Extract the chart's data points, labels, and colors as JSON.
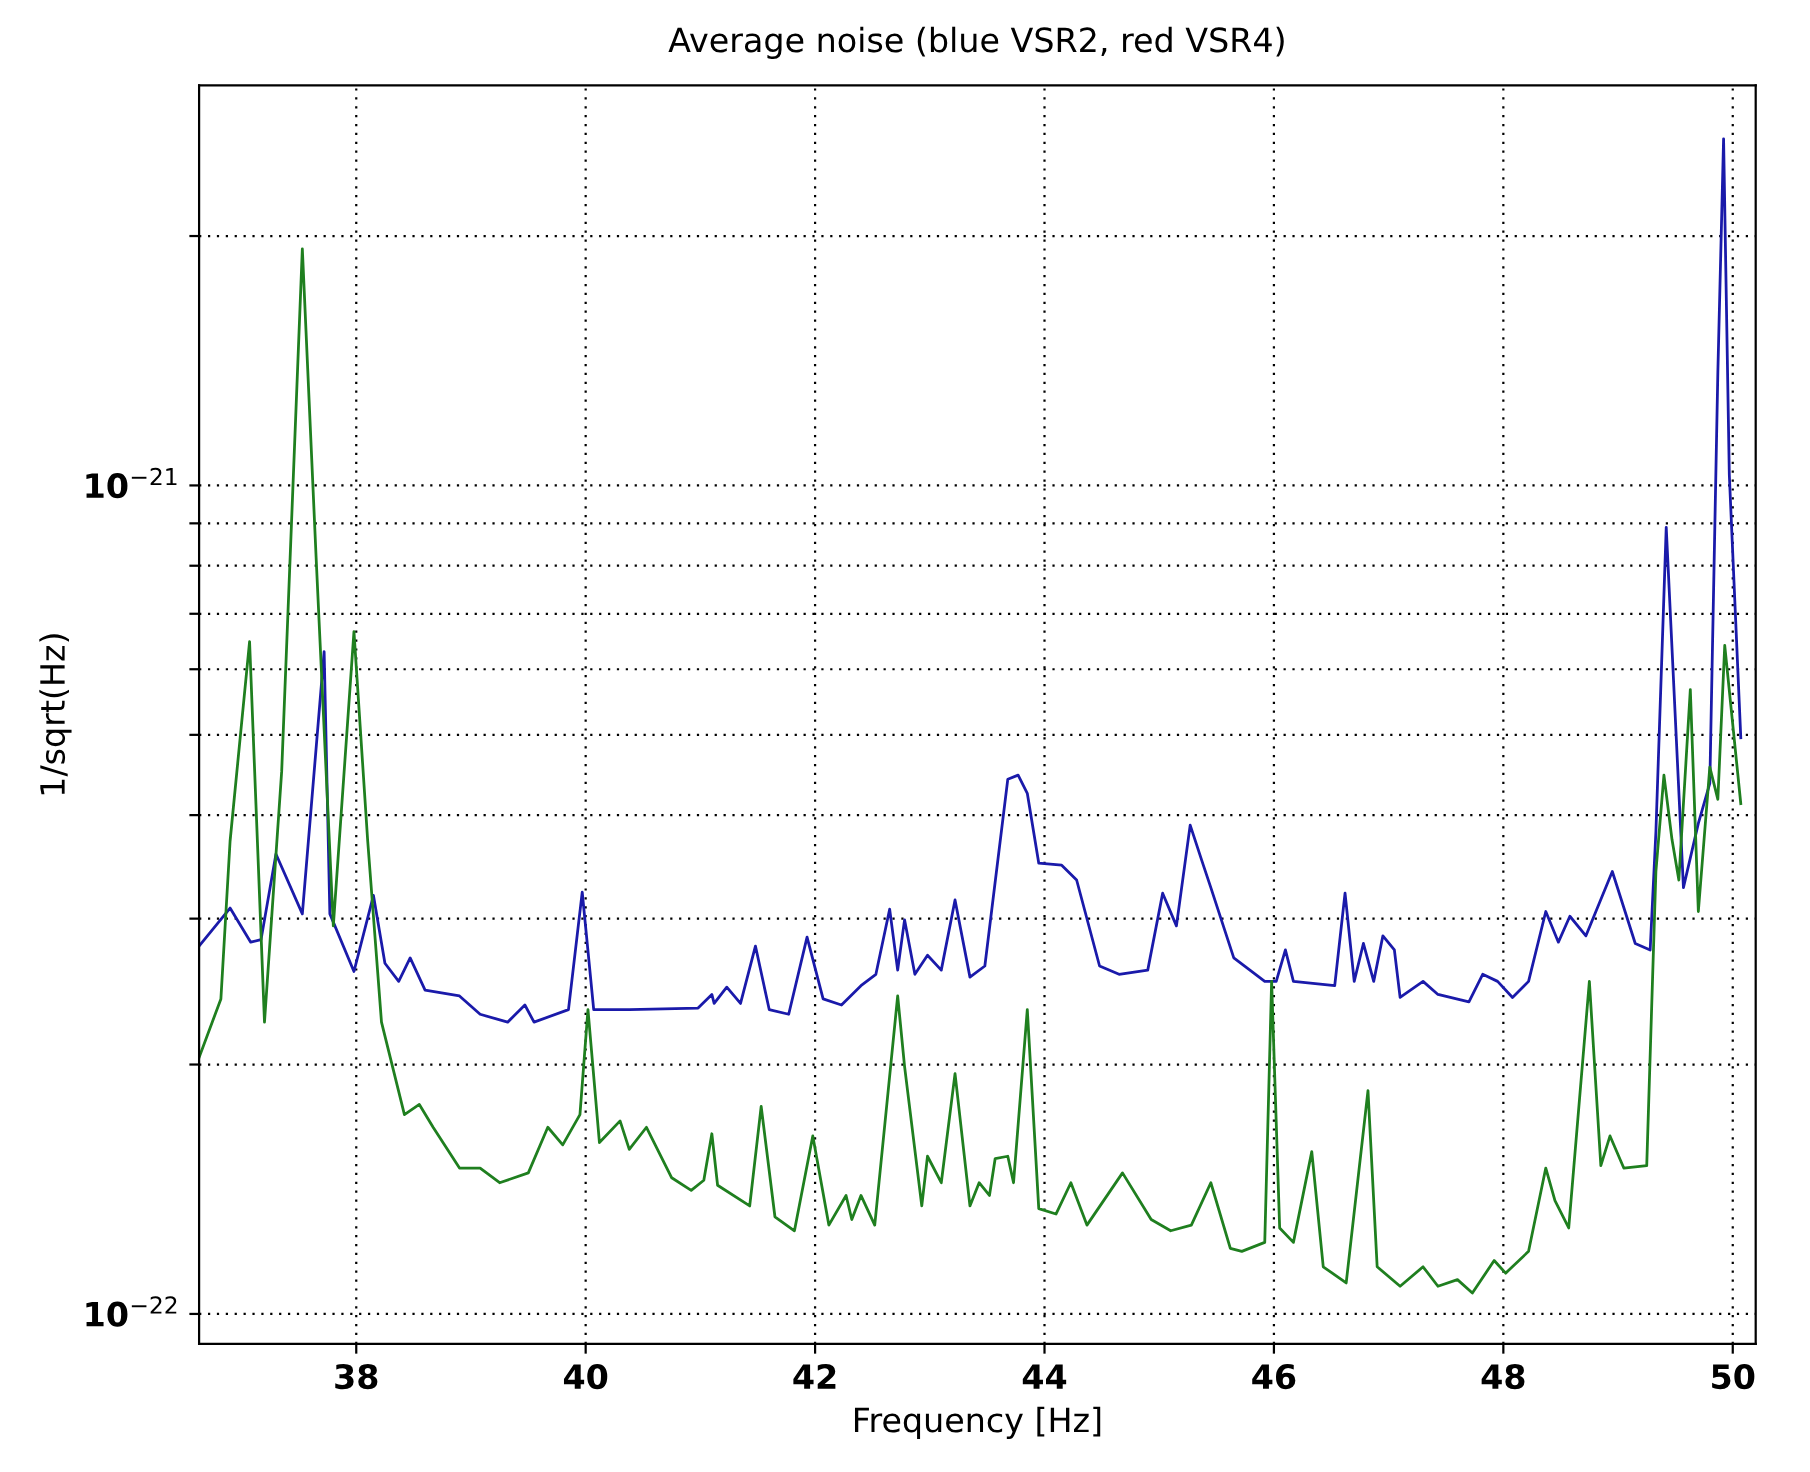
{
  "chart_data": {
    "type": "line",
    "title": "Average noise (blue VSR2, red VSR4)",
    "xlabel": "Frequency [Hz]",
    "ylabel": "1/sqrt(Hz)",
    "log": "y",
    "grid": true,
    "line_style": "solid",
    "marker": "none",
    "xlim": [
      36.63,
      50.2
    ],
    "xticks": [
      38,
      40,
      42,
      44,
      46,
      48,
      50
    ],
    "ylim": [
      9.2e-23,
      3.04e-21
    ],
    "yticks": [
      {
        "value": 1e-22,
        "label": "10$^{−22}$"
      },
      {
        "value": 2e-22,
        "label": null
      },
      {
        "value": 3e-22,
        "label": null
      },
      {
        "value": 4e-22,
        "label": null
      },
      {
        "value": 5e-22,
        "label": null
      },
      {
        "value": 6e-22,
        "label": null
      },
      {
        "value": 7e-22,
        "label": null
      },
      {
        "value": 8e-22,
        "label": null
      },
      {
        "value": 9e-22,
        "label": null
      },
      {
        "value": 1e-21,
        "label": "10$^{−21}$"
      },
      {
        "value": 2e-21,
        "label": null
      }
    ],
    "series": [
      {
        "color": "#1a1aaa",
        "x": [
          36.63,
          36.9,
          37.08,
          37.17,
          37.3,
          37.53,
          37.72,
          37.77,
          37.98,
          38.15,
          38.25,
          38.37,
          38.47,
          38.6,
          38.9,
          39.08,
          39.32,
          39.47,
          39.55,
          39.85,
          39.97,
          40.07,
          40.38,
          40.98,
          41.1,
          41.12,
          41.23,
          41.35,
          41.48,
          41.6,
          41.77,
          41.93,
          42.07,
          42.23,
          42.4,
          42.53,
          42.65,
          42.72,
          42.78,
          42.87,
          42.98,
          43.1,
          43.22,
          43.35,
          43.48,
          43.68,
          43.77,
          43.85,
          43.95,
          44.15,
          44.28,
          44.48,
          44.65,
          44.9,
          45.03,
          45.15,
          45.27,
          45.37,
          45.45,
          45.65,
          45.92,
          46.02,
          46.1,
          46.17,
          46.53,
          46.62,
          46.7,
          46.78,
          46.87,
          46.95,
          47.05,
          47.1,
          47.3,
          47.43,
          47.7,
          47.82,
          47.95,
          48.08,
          48.22,
          48.37,
          48.48,
          48.58,
          48.72,
          48.95,
          49.15,
          49.28,
          49.33,
          49.42,
          49.57,
          49.7,
          49.8,
          49.87,
          49.92,
          49.97,
          50.07
        ],
        "values": [
          2.78e-22,
          3.09e-22,
          2.81e-22,
          2.83e-22,
          3.59e-22,
          3.04e-22,
          6.3e-22,
          3.04e-22,
          2.59e-22,
          3.2e-22,
          2.65e-22,
          2.52e-22,
          2.69e-22,
          2.46e-22,
          2.42e-22,
          2.3e-22,
          2.25e-22,
          2.36e-22,
          2.25e-22,
          2.33e-22,
          3.23e-22,
          2.33e-22,
          2.33e-22,
          2.34e-22,
          2.43e-22,
          2.37e-22,
          2.48e-22,
          2.37e-22,
          2.78e-22,
          2.33e-22,
          2.3e-22,
          2.85e-22,
          2.4e-22,
          2.36e-22,
          2.49e-22,
          2.57e-22,
          3.08e-22,
          2.6e-22,
          2.99e-22,
          2.57e-22,
          2.71e-22,
          2.6e-22,
          3.16e-22,
          2.55e-22,
          2.63e-22,
          4.42e-22,
          4.47e-22,
          4.25e-22,
          3.5e-22,
          3.48e-22,
          3.34e-22,
          2.63e-22,
          2.57e-22,
          2.6e-22,
          3.22e-22,
          2.94e-22,
          3.89e-22,
          3.53e-22,
          3.27e-22,
          2.69e-22,
          2.52e-22,
          2.52e-22,
          2.75e-22,
          2.52e-22,
          2.49e-22,
          3.22e-22,
          2.52e-22,
          2.8e-22,
          2.52e-22,
          2.86e-22,
          2.75e-22,
          2.41e-22,
          2.52e-22,
          2.43e-22,
          2.38e-22,
          2.57e-22,
          2.52e-22,
          2.41e-22,
          2.52e-22,
          3.06e-22,
          2.81e-22,
          3.02e-22,
          2.86e-22,
          3.42e-22,
          2.8e-22,
          2.75e-22,
          3.82e-22,
          8.9e-22,
          3.27e-22,
          3.91e-22,
          4.37e-22,
          1.37e-21,
          2.62e-21,
          1.03e-21,
          4.96e-22
        ]
      },
      {
        "color": "#1f7f1f",
        "x": [
          36.63,
          36.82,
          36.9,
          37.07,
          37.2,
          37.35,
          37.53,
          37.65,
          37.8,
          37.98,
          38.1,
          38.22,
          38.42,
          38.55,
          38.67,
          38.9,
          39.08,
          39.25,
          39.5,
          39.67,
          39.8,
          39.95,
          40.02,
          40.12,
          40.3,
          40.38,
          40.53,
          40.75,
          40.92,
          41.03,
          41.1,
          41.15,
          41.43,
          41.53,
          41.65,
          41.82,
          41.98,
          42.12,
          42.27,
          42.32,
          42.4,
          42.52,
          42.72,
          42.78,
          42.93,
          42.98,
          43.1,
          43.22,
          43.35,
          43.43,
          43.52,
          43.57,
          43.68,
          43.73,
          43.85,
          43.95,
          44.1,
          44.23,
          44.37,
          44.68,
          44.93,
          45.1,
          45.28,
          45.45,
          45.62,
          45.72,
          45.92,
          45.98,
          46.05,
          46.17,
          46.33,
          46.43,
          46.63,
          46.82,
          46.9,
          47.1,
          47.3,
          47.43,
          47.6,
          47.73,
          47.92,
          48.02,
          48.22,
          48.37,
          48.45,
          48.57,
          48.75,
          48.85,
          48.93,
          49.05,
          49.25,
          49.33,
          49.4,
          49.47,
          49.53,
          49.63,
          49.7,
          49.8,
          49.87,
          49.93,
          50.07
        ],
        "values": [
          2.04e-22,
          2.4e-22,
          3.72e-22,
          6.48e-22,
          2.25e-22,
          4.52e-22,
          1.93e-21,
          8.19e-22,
          2.94e-22,
          6.66e-22,
          3.72e-22,
          2.25e-22,
          1.74e-22,
          1.79e-22,
          1.68e-22,
          1.5e-22,
          1.5e-22,
          1.44e-22,
          1.48e-22,
          1.68e-22,
          1.6e-22,
          1.74e-22,
          2.33e-22,
          1.61e-22,
          1.71e-22,
          1.58e-22,
          1.68e-22,
          1.46e-22,
          1.41e-22,
          1.45e-22,
          1.65e-22,
          1.43e-22,
          1.35e-22,
          1.78e-22,
          1.31e-22,
          1.26e-22,
          1.64e-22,
          1.28e-22,
          1.39e-22,
          1.3e-22,
          1.39e-22,
          1.28e-22,
          2.42e-22,
          1.99e-22,
          1.35e-22,
          1.55e-22,
          1.44e-22,
          1.95e-22,
          1.35e-22,
          1.44e-22,
          1.39e-22,
          1.54e-22,
          1.55e-22,
          1.44e-22,
          2.33e-22,
          1.34e-22,
          1.32e-22,
          1.44e-22,
          1.28e-22,
          1.48e-22,
          1.3e-22,
          1.26e-22,
          1.28e-22,
          1.44e-22,
          1.2e-22,
          1.19e-22,
          1.22e-22,
          2.52e-22,
          1.27e-22,
          1.22e-22,
          1.57e-22,
          1.14e-22,
          1.09e-22,
          1.86e-22,
          1.14e-22,
          1.08e-22,
          1.14e-22,
          1.08e-22,
          1.1e-22,
          1.06e-22,
          1.16e-22,
          1.12e-22,
          1.19e-22,
          1.5e-22,
          1.37e-22,
          1.27e-22,
          2.52e-22,
          1.51e-22,
          1.64e-22,
          1.5e-22,
          1.51e-22,
          3.42e-22,
          4.47e-22,
          3.74e-22,
          3.34e-22,
          5.67e-22,
          3.06e-22,
          4.57e-22,
          4.18e-22,
          6.41e-22,
          4.13e-22
        ]
      }
    ]
  }
}
